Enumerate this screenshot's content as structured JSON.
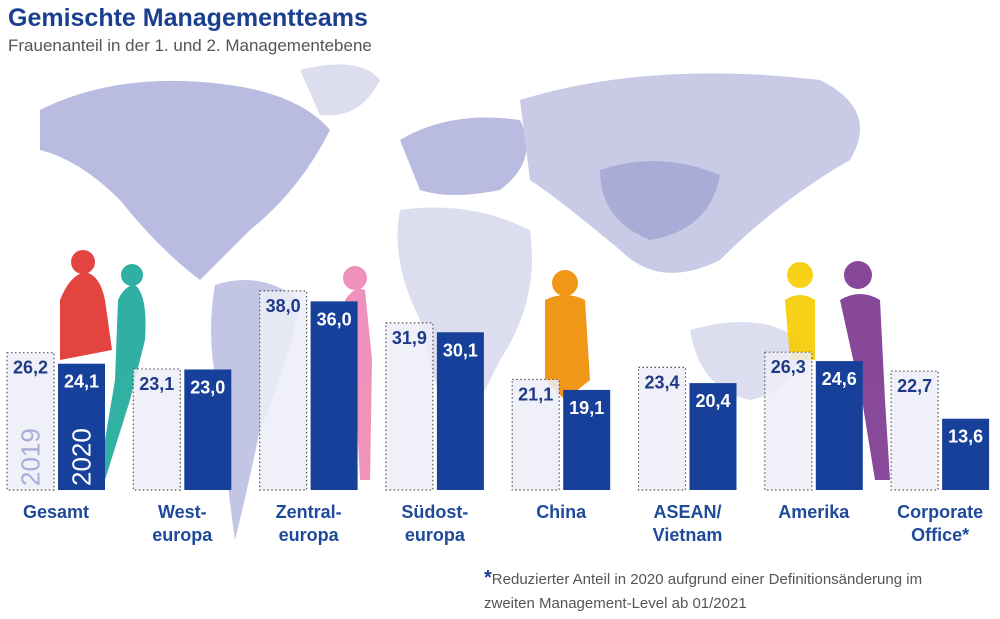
{
  "chart_data": {
    "type": "bar",
    "title": "Gemischte Managementteams",
    "subtitle": "Frauenanteil in der 1. und 2. Managementebene",
    "categories": [
      [
        "Gesamt"
      ],
      [
        "West-",
        "europa"
      ],
      [
        "Zentral-",
        "europa"
      ],
      [
        "Südost-",
        "europa"
      ],
      [
        "China"
      ],
      [
        "ASEAN/",
        "Vietnam"
      ],
      [
        "Amerika"
      ],
      [
        "Corporate",
        "Office*"
      ]
    ],
    "series": [
      {
        "name": "2019",
        "values": [
          "26,2",
          "23,1",
          "38,0",
          "31,9",
          "21,1",
          "23,4",
          "26,3",
          "22,7"
        ],
        "style": "dotted-outline",
        "color": "#ecedf7"
      },
      {
        "name": "2020",
        "values": [
          "24,1",
          "23,0",
          "36,0",
          "30,1",
          "19,1",
          "20,4",
          "24,6",
          "13,6"
        ],
        "style": "solid",
        "color": "#17409a"
      }
    ],
    "ylim": [
      0,
      40
    ],
    "grid": false,
    "legend": "inside-first-bars",
    "footnote_mark": "*",
    "footnote_lines": [
      "Reduzierter Anteil in 2020 aufgrund einer Definitionsänderung im",
      "zweiten Management-Level ab 01/2021"
    ],
    "colors": {
      "title": "#1a3f8f",
      "map": "#c9cbe6",
      "map_dark": "#a9acd6"
    }
  }
}
